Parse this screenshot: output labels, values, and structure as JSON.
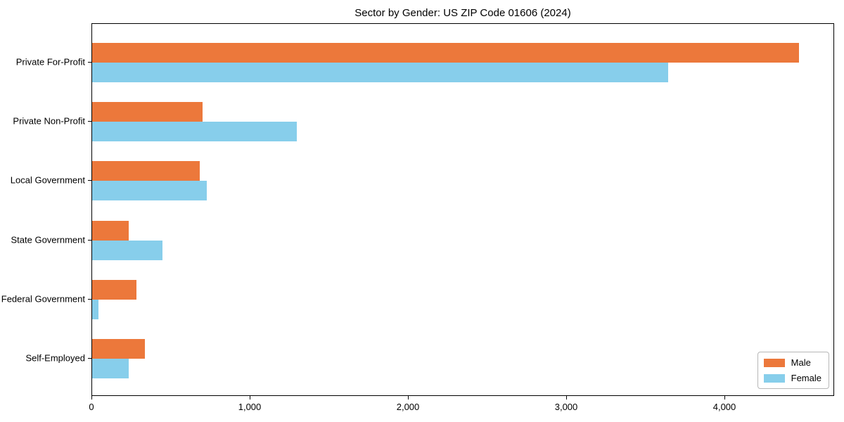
{
  "chart_data": {
    "type": "bar",
    "orientation": "horizontal",
    "title": "Sector by Gender: US ZIP Code 01606 (2024)",
    "categories": [
      "Private For-Profit",
      "Private Non-Profit",
      "Local Government",
      "State Government",
      "Federal Government",
      "Self-Employed"
    ],
    "series": [
      {
        "name": "Male",
        "color": "#EC783B",
        "values": [
          4470,
          700,
          680,
          230,
          280,
          335
        ]
      },
      {
        "name": "Female",
        "color": "#87CEEB",
        "values": [
          3640,
          1295,
          725,
          445,
          40,
          230
        ]
      }
    ],
    "xlabel": "",
    "ylabel": "",
    "xlim": [
      0,
      4695
    ],
    "x_ticks": [
      0,
      1000,
      2000,
      3000,
      4000
    ],
    "x_tick_labels": [
      "0",
      "1,000",
      "2,000",
      "3,000",
      "4,000"
    ],
    "grid": false,
    "legend": {
      "position": "lower right",
      "entries": [
        "Male",
        "Female"
      ]
    },
    "colors": {
      "male": "#EC783B",
      "female": "#87CEEB",
      "axis": "#000000",
      "background": "#ffffff",
      "legend_border": "#b7b7b7"
    }
  }
}
